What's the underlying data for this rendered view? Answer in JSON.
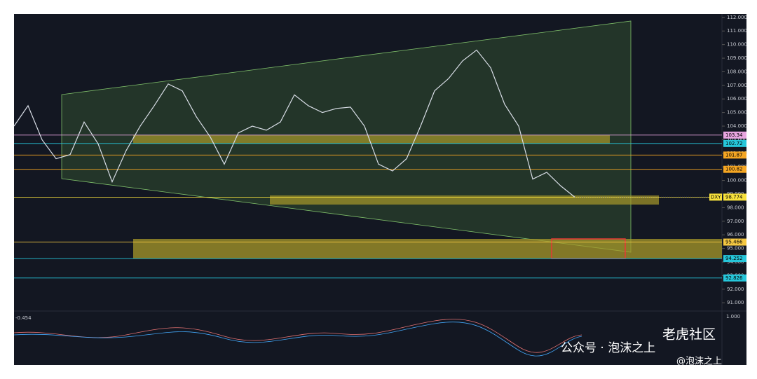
{
  "chart_data": {
    "type": "line",
    "symbol": "DXY",
    "oscillator_value": "-0.454",
    "oscillator_tick": "1.000",
    "values": [
      104.0,
      105.5,
      103.0,
      101.6,
      101.9,
      104.3,
      102.7,
      99.9,
      102.2,
      104.0,
      105.5,
      107.1,
      106.6,
      104.7,
      103.2,
      101.2,
      103.5,
      104.0,
      103.7,
      104.3,
      106.3,
      105.5,
      105.0,
      105.3,
      105.4,
      104.0,
      101.2,
      100.7,
      101.6,
      104.0,
      106.6,
      107.5,
      108.8,
      109.6,
      108.3,
      105.6,
      104.0,
      100.1,
      100.6,
      99.6,
      98.774
    ],
    "color": "#d8dde6",
    "ylim": [
      90.7,
      112.25
    ],
    "yticks": [
      {
        "value": 91,
        "label": "91.000"
      },
      {
        "value": 92,
        "label": "92.000"
      },
      {
        "value": 93,
        "label": "93.000"
      },
      {
        "value": 94,
        "label": "94.000"
      },
      {
        "value": 95,
        "label": "95.000"
      },
      {
        "value": 96,
        "label": "96.000"
      },
      {
        "value": 97,
        "label": "97.000"
      },
      {
        "value": 98,
        "label": "98.000"
      },
      {
        "value": 99,
        "label": "99.000"
      },
      {
        "value": 100,
        "label": "100.000"
      },
      {
        "value": 101,
        "label": "101.000"
      },
      {
        "value": 102,
        "label": "102.000"
      },
      {
        "value": 103,
        "label": "103.000"
      },
      {
        "value": 104,
        "label": "104.000"
      },
      {
        "value": 105,
        "label": "105.000"
      },
      {
        "value": 106,
        "label": "106.000"
      },
      {
        "value": 107,
        "label": "107.000"
      },
      {
        "value": 108,
        "label": "108.000"
      },
      {
        "value": 109,
        "label": "109.000"
      },
      {
        "value": 110,
        "label": "110.000"
      },
      {
        "value": 111,
        "label": "111.000"
      },
      {
        "value": 112,
        "label": "112.000"
      }
    ],
    "levels": [
      {
        "value": 103.34,
        "color": "#e8a5e0"
      },
      {
        "value": 102.72,
        "color": "#26c6da"
      },
      {
        "value": 101.87,
        "color": "#f5a623"
      },
      {
        "value": 100.82,
        "color": "#f5a623"
      },
      {
        "value": 98.774,
        "color": "#f7e13c"
      },
      {
        "value": 95.466,
        "color": "#f5c842"
      },
      {
        "value": 94.252,
        "color": "#26c6da"
      },
      {
        "value": 92.826,
        "color": "#26c6da"
      }
    ],
    "watermarks": [
      "老虎社区",
      "公众号 · 泡沫之上",
      "@泡沫之上"
    ]
  }
}
